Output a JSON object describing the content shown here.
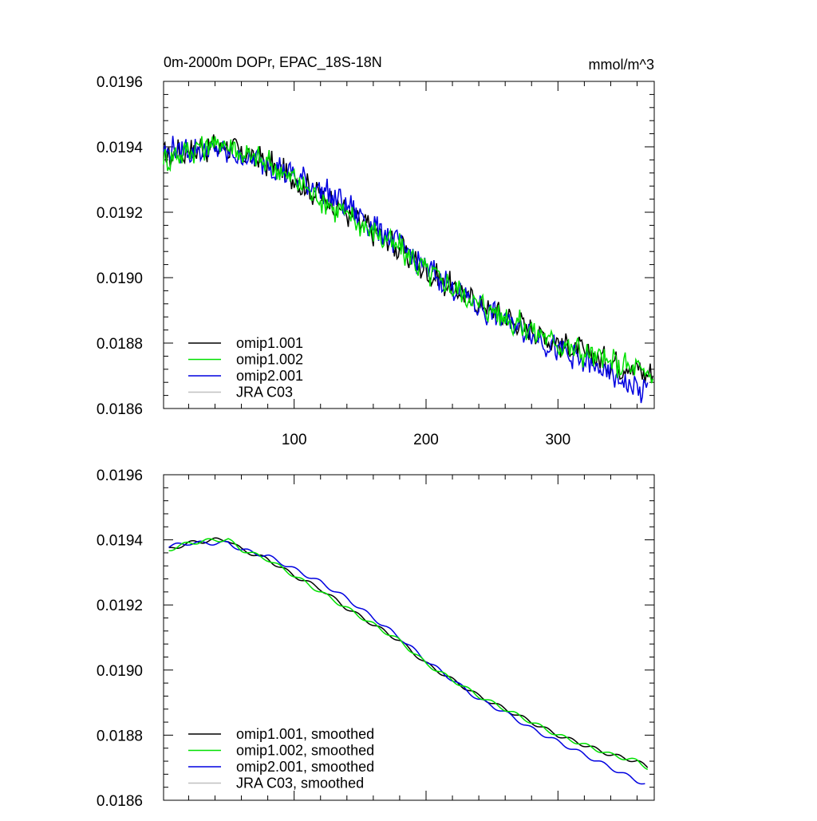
{
  "chart_data": [
    {
      "type": "line",
      "title": "0m-2000m DOPr, EPAC_18S-18N",
      "units": "mmol/m^3",
      "xlabel": "",
      "ylabel": "",
      "xlim": [
        1,
        373
      ],
      "ylim": [
        0.0186,
        0.0196
      ],
      "x_ticks": [
        100,
        200,
        300
      ],
      "x_tick_labels": [
        "100",
        "200",
        "300"
      ],
      "y_ticks": [
        0.0186,
        0.0188,
        0.019,
        0.0192,
        0.0194,
        0.0196
      ],
      "y_tick_labels": [
        "0.0186",
        "0.0188",
        "0.0190",
        "0.0192",
        "0.0194",
        "0.0196"
      ],
      "legend_position": "bottom-left",
      "grid": false,
      "series": [
        {
          "name": "omip1.001",
          "color": "#000000",
          "x": [
            1,
            20,
            40,
            50,
            60,
            80,
            100,
            120,
            140,
            160,
            180,
            200,
            220,
            240,
            260,
            280,
            300,
            320,
            340,
            360,
            372
          ],
          "y": [
            0.01937,
            0.01939,
            0.0194,
            0.0194,
            0.01938,
            0.01935,
            0.0193,
            0.01925,
            0.0192,
            0.01914,
            0.01909,
            0.01902,
            0.01897,
            0.01892,
            0.01888,
            0.01884,
            0.0188,
            0.01877,
            0.01874,
            0.01872,
            0.0187
          ]
        },
        {
          "name": "omip1.002",
          "color": "#00e000",
          "x": [
            1,
            20,
            40,
            50,
            60,
            80,
            100,
            120,
            140,
            160,
            180,
            200,
            220,
            240,
            260,
            280,
            300,
            320,
            340,
            360,
            372
          ],
          "y": [
            0.01936,
            0.01939,
            0.01941,
            0.01941,
            0.01938,
            0.01935,
            0.0193,
            0.01924,
            0.01919,
            0.01914,
            0.01909,
            0.01902,
            0.01897,
            0.01892,
            0.01888,
            0.01884,
            0.0188,
            0.01877,
            0.01874,
            0.01872,
            0.01869
          ]
        },
        {
          "name": "omip2.001",
          "color": "#0000e0",
          "x": [
            1,
            20,
            40,
            50,
            60,
            80,
            100,
            120,
            140,
            160,
            180,
            200,
            220,
            240,
            260,
            280,
            300,
            320,
            340,
            360,
            368
          ],
          "y": [
            0.01939,
            0.01939,
            0.01939,
            0.01938,
            0.01937,
            0.01935,
            0.01931,
            0.01927,
            0.01922,
            0.01916,
            0.0191,
            0.01903,
            0.01897,
            0.01891,
            0.01887,
            0.01883,
            0.01878,
            0.01874,
            0.0187,
            0.01866,
            0.01865
          ]
        },
        {
          "name": "JRA C03",
          "color": "#c0c0c0",
          "x": [],
          "y": []
        }
      ]
    },
    {
      "type": "line",
      "title": "",
      "xlabel": "",
      "ylabel": "",
      "xlim": [
        1,
        373
      ],
      "ylim": [
        0.0186,
        0.0196
      ],
      "x_ticks": [
        100,
        200,
        300
      ],
      "y_ticks": [
        0.0186,
        0.0188,
        0.019,
        0.0192,
        0.0194,
        0.0196
      ],
      "y_tick_labels": [
        "0.0186",
        "0.0188",
        "0.0190",
        "0.0192",
        "0.0194",
        "0.0196"
      ],
      "legend_position": "bottom-left",
      "grid": false,
      "series": [
        {
          "name": "omip1.001, smoothed",
          "color": "#000000",
          "x": [
            5,
            20,
            40,
            50,
            60,
            80,
            100,
            120,
            140,
            160,
            180,
            200,
            220,
            240,
            260,
            280,
            300,
            320,
            340,
            360,
            368
          ],
          "y": [
            0.01937,
            0.01939,
            0.0194,
            0.0194,
            0.01937,
            0.01934,
            0.01929,
            0.01925,
            0.01919,
            0.01914,
            0.01909,
            0.01902,
            0.01897,
            0.01892,
            0.01888,
            0.01884,
            0.0188,
            0.01877,
            0.01874,
            0.01872,
            0.0187
          ]
        },
        {
          "name": "omip1.002, smoothed",
          "color": "#00e000",
          "x": [
            5,
            20,
            40,
            50,
            60,
            80,
            100,
            120,
            140,
            160,
            180,
            200,
            220,
            240,
            260,
            280,
            300,
            320,
            340,
            360,
            368
          ],
          "y": [
            0.01937,
            0.01939,
            0.0194,
            0.0194,
            0.01937,
            0.01934,
            0.01929,
            0.01924,
            0.01919,
            0.01914,
            0.01909,
            0.01902,
            0.01897,
            0.01892,
            0.01888,
            0.01884,
            0.0188,
            0.01877,
            0.01874,
            0.01872,
            0.0187
          ]
        },
        {
          "name": "omip2.001, smoothed",
          "color": "#0000e0",
          "x": [
            5,
            20,
            40,
            50,
            60,
            80,
            100,
            120,
            140,
            160,
            180,
            200,
            220,
            240,
            260,
            280,
            300,
            320,
            340,
            360,
            366
          ],
          "y": [
            0.01938,
            0.01939,
            0.01939,
            0.01939,
            0.01937,
            0.01935,
            0.01931,
            0.01927,
            0.01922,
            0.01916,
            0.0191,
            0.01903,
            0.01897,
            0.01891,
            0.01887,
            0.01882,
            0.01878,
            0.01874,
            0.0187,
            0.01866,
            0.01865
          ]
        },
        {
          "name": "JRA C03, smoothed",
          "color": "#c0c0c0",
          "x": [],
          "y": []
        }
      ]
    }
  ]
}
